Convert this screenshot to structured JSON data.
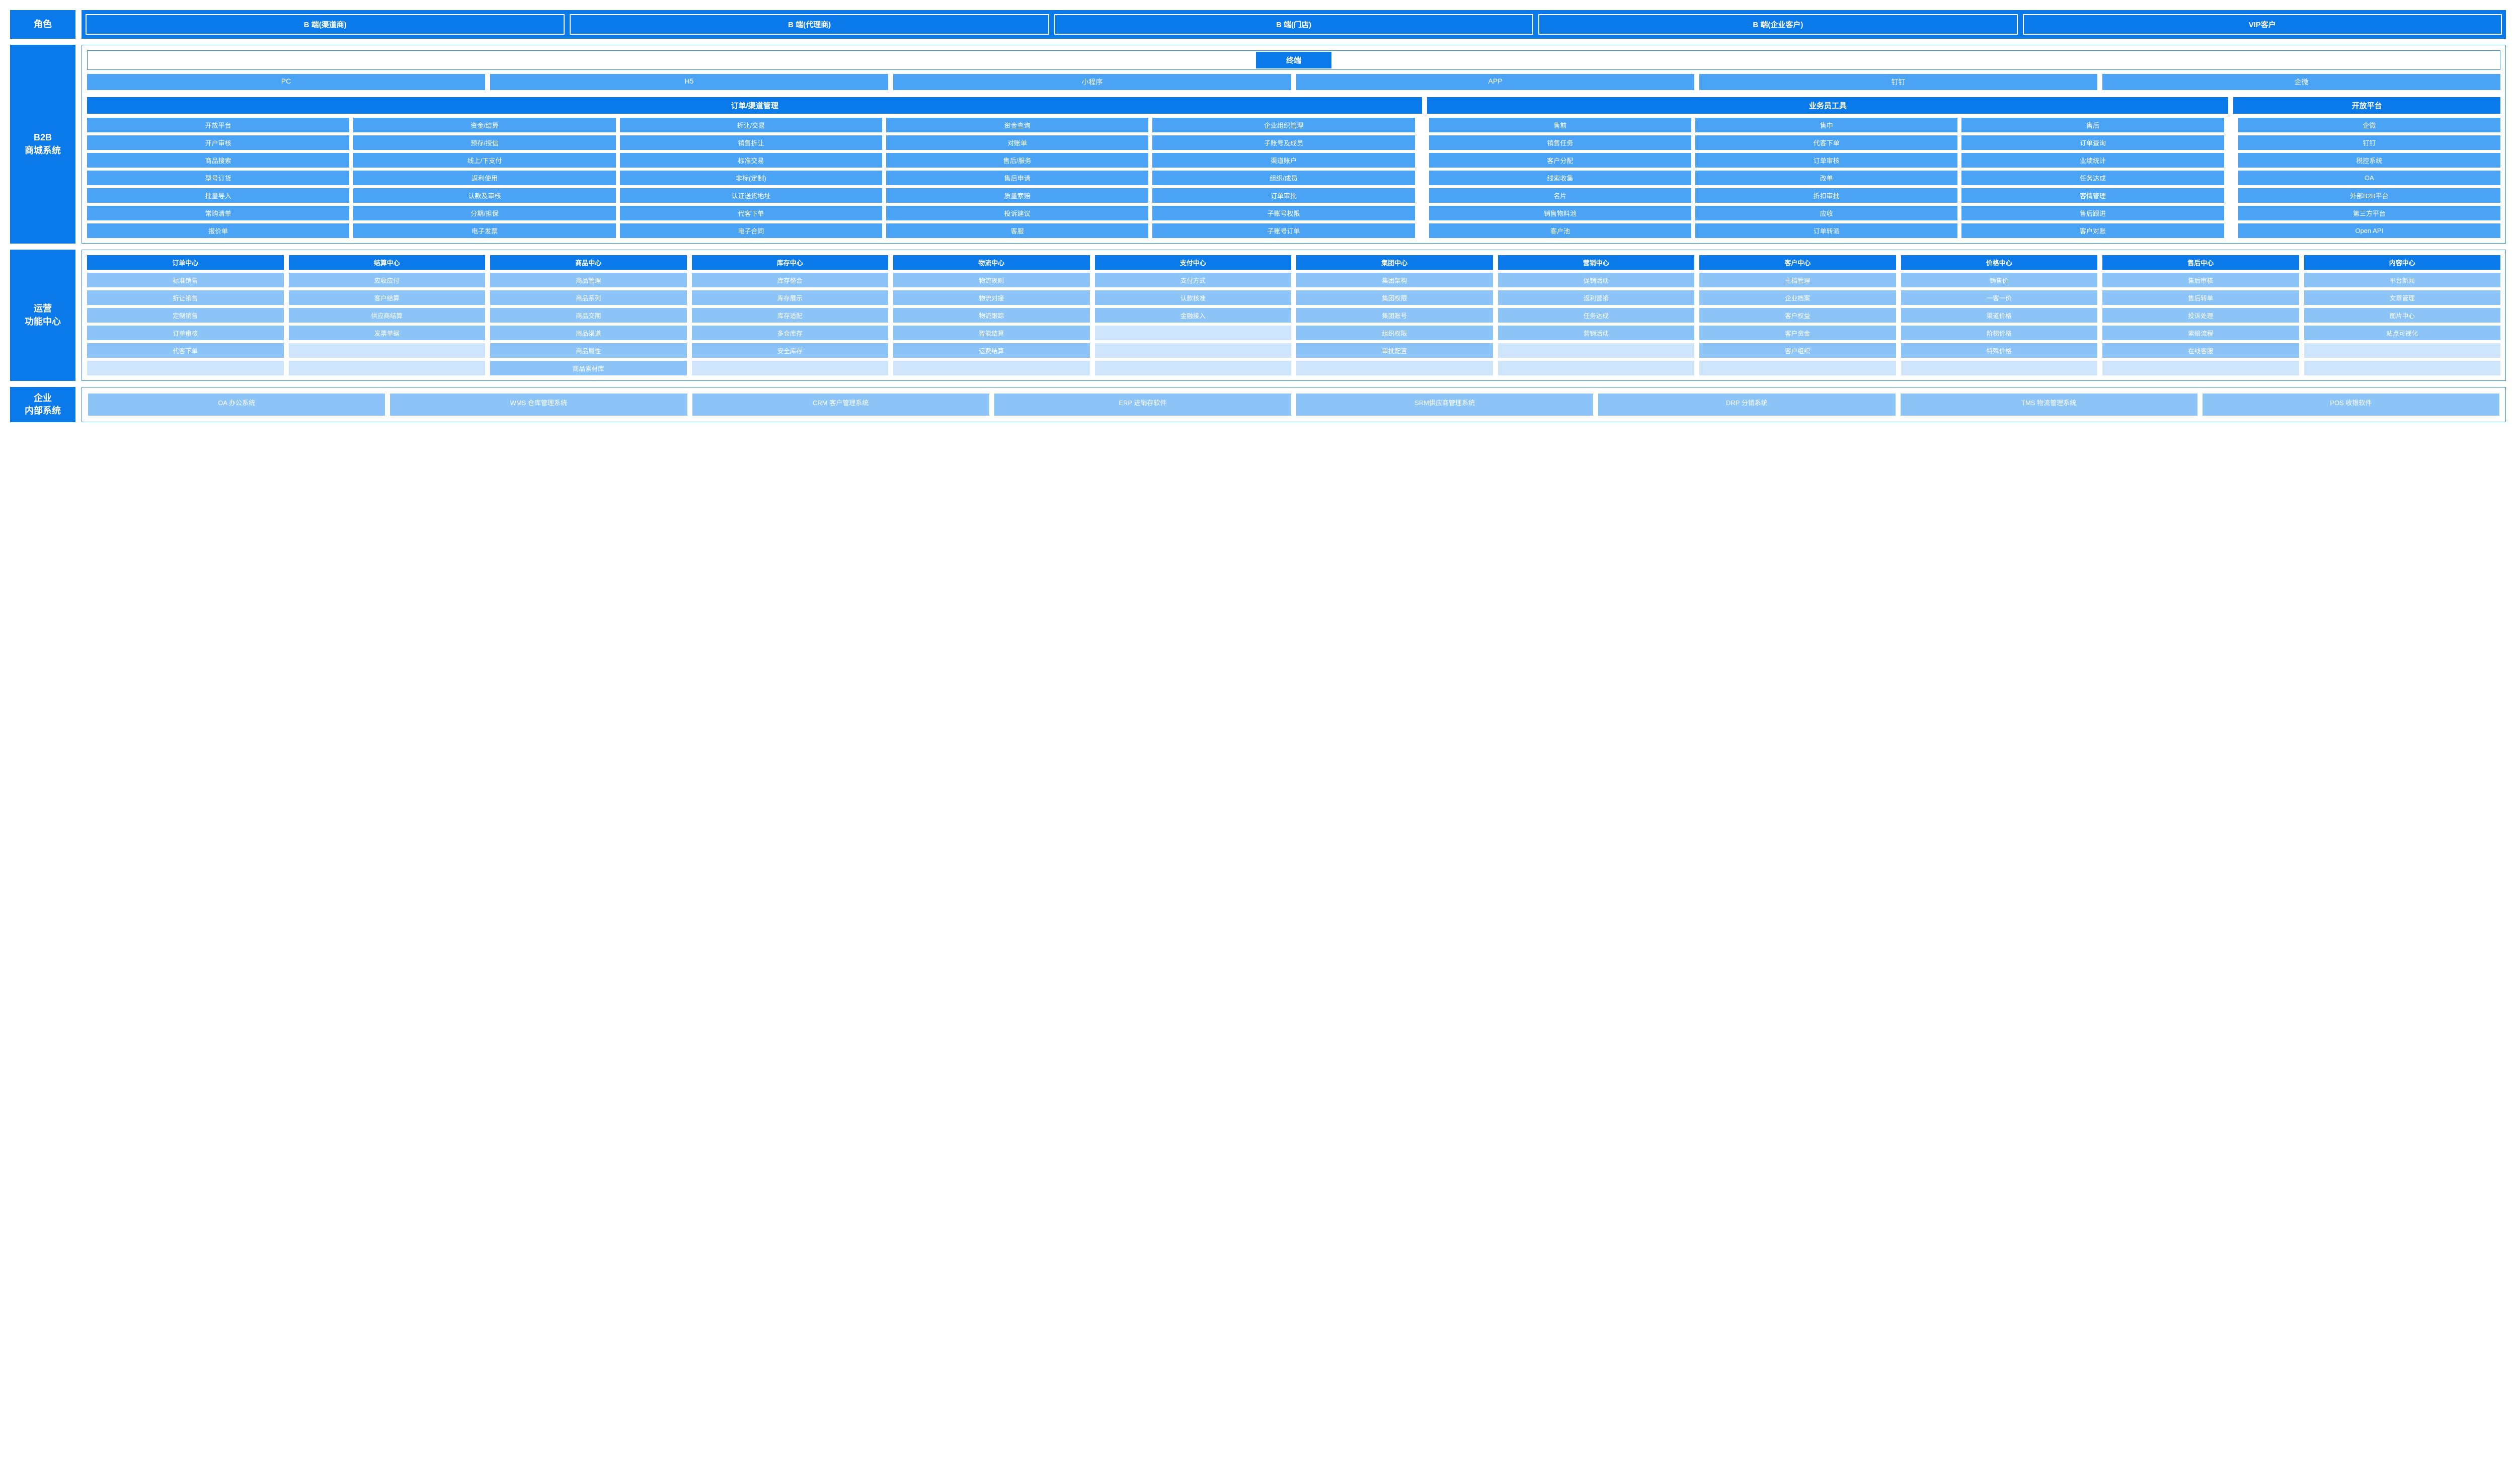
{
  "colors": {
    "primary": "#0a7aea",
    "mid": "#4ba3f5",
    "light": "#8cc4f7",
    "lighter": "#cfe5fb",
    "border": "#2a8cf0",
    "white": "#ffffff"
  },
  "side": {
    "role": "角色",
    "b2b": "B2B\n商城系统",
    "ops": "运营\n功能中心",
    "ent": "企业\n内部系统"
  },
  "roles": [
    "B 端(渠道商)",
    "B 端(代理商)",
    "B 端(门店)",
    "B 端(企业客户)",
    "VIP客户"
  ],
  "terminal": {
    "title": "终端",
    "items": [
      "PC",
      "H5",
      "小程序",
      "APP",
      "钉钉",
      "企微"
    ]
  },
  "b2b_sections": {
    "order_channel": "订单/渠道管理",
    "sales_tool": "业务员工具",
    "open_platform": "开放平台"
  },
  "b2b_cols": {
    "c1": [
      "开放平台",
      "开户审核",
      "商品搜索",
      "型号订货",
      "批量导入",
      "常购清单",
      "报价单"
    ],
    "c2": [
      "资金/结算",
      "预存/授信",
      "线上/下支付",
      "返利使用",
      "认款及审核",
      "分期/担保",
      "电子发票"
    ],
    "c3": [
      "折让/交易",
      "销售折让",
      "标准交易",
      "非标(定制)",
      "认证送货地址",
      "代客下单",
      "电子合同"
    ],
    "c4": [
      "资金查询",
      "对账单",
      "售后/服务",
      "售后申请",
      "质量索赔",
      "投诉建议",
      "客服"
    ],
    "c5": [
      "企业组织管理",
      "子账号及成员",
      "渠道账户",
      "组织/成员",
      "订单审批",
      "子账号权限",
      "子账号订单"
    ],
    "c6": [
      "售前",
      "销售任务",
      "客户分配",
      "线索收集",
      "名片",
      "销售物料池",
      "客户池"
    ],
    "c7": [
      "售中",
      "代客下单",
      "订单审核",
      "改单",
      "折扣审批",
      "应收",
      "订单转派"
    ],
    "c8": [
      "售后",
      "订单查询",
      "业绩统计",
      "任务达成",
      "客情管理",
      "售后跟进",
      "客户对账"
    ],
    "c9": [
      "企微",
      "钉钉",
      "税控系统",
      "OA",
      "外部B2B平台",
      "第三方平台",
      "Open API"
    ]
  },
  "ops_heads": [
    "订单中心",
    "结算中心",
    "商品中心",
    "库存中心",
    "物流中心",
    "支付中心",
    "集团中心",
    "营销中心",
    "客户中心",
    "价格中心",
    "售后中心",
    "内容中心"
  ],
  "ops_cols": {
    "o1": [
      "标准销售",
      "折让销售",
      "定制销售",
      "订单审核",
      "代客下单",
      ""
    ],
    "o2": [
      "应收应付",
      "客户结算",
      "供应商结算",
      "发票单据",
      "",
      ""
    ],
    "o3": [
      "商品管理",
      "商品系列",
      "商品交期",
      "商品渠道",
      "商品属性",
      "商品素材库"
    ],
    "o4": [
      "库存整合",
      "库存展示",
      "库存适配",
      "多仓库存",
      "安全库存",
      ""
    ],
    "o5": [
      "物流规则",
      "物流对接",
      "物流跟踪",
      "智能结算",
      "运费结算",
      ""
    ],
    "o6": [
      "支付方式",
      "认款核准",
      "金融接入",
      "",
      "",
      ""
    ],
    "o7": [
      "集团架构",
      "集团权限",
      "集团账号",
      "组织权限",
      "审批配置",
      ""
    ],
    "o8": [
      "促销活动",
      "返利营销",
      "任务达成",
      "营销活动",
      "",
      ""
    ],
    "o9": [
      "主档管理",
      "企业档案",
      "客户权益",
      "客户资金",
      "客户组织",
      ""
    ],
    "o10": [
      "销售价",
      "一客一价",
      "渠道价格",
      "阶梯价格",
      "特殊价格",
      ""
    ],
    "o11": [
      "售后审核",
      "售后转单",
      "投诉处理",
      "索赔流程",
      "在线客服",
      ""
    ],
    "o12": [
      "平台新闻",
      "文章管理",
      "图片中心",
      "站点可视化",
      "",
      ""
    ]
  },
  "enterprise": [
    "OA 办公系统",
    "WMS 仓库管理系统",
    "CRM 客户管理系统",
    "ERP 进销存软件",
    "SRM供应商管理系统",
    "DRP 分销系统",
    "TMS 物流管理系统",
    "POS 收银软件"
  ]
}
